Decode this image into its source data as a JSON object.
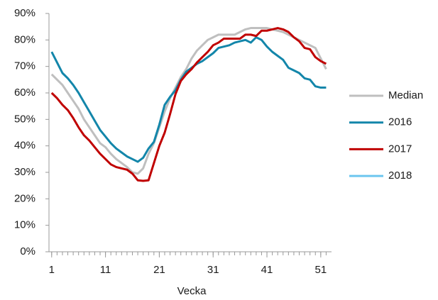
{
  "chart_data": {
    "type": "line",
    "x_label": "Vecka",
    "x": [
      1,
      2,
      3,
      4,
      5,
      6,
      7,
      8,
      9,
      10,
      11,
      12,
      13,
      14,
      15,
      16,
      17,
      18,
      19,
      20,
      21,
      22,
      23,
      24,
      25,
      26,
      27,
      28,
      29,
      30,
      31,
      32,
      33,
      34,
      35,
      36,
      37,
      38,
      39,
      40,
      41,
      42,
      43,
      44,
      45,
      46,
      47,
      48,
      49,
      50,
      51,
      52
    ],
    "xlim": [
      0.5,
      53
    ],
    "xticks": [
      1,
      11,
      21,
      31,
      41,
      51
    ],
    "ylim": [
      0,
      90
    ],
    "yticks": [
      {
        "value": 0,
        "label": "0%"
      },
      {
        "value": 10,
        "label": "10%"
      },
      {
        "value": 20,
        "label": "20%"
      },
      {
        "value": 30,
        "label": "30%"
      },
      {
        "value": 40,
        "label": "40%"
      },
      {
        "value": 50,
        "label": "50%"
      },
      {
        "value": 60,
        "label": "60%"
      },
      {
        "value": 70,
        "label": "70%"
      },
      {
        "value": 80,
        "label": "80%"
      },
      {
        "value": 90,
        "label": "90%"
      }
    ],
    "legend": "right",
    "series": [
      {
        "name": "Median",
        "color": "#bfbfbf",
        "values": [
          67,
          65,
          63,
          60,
          57,
          54,
          50,
          47,
          44,
          41,
          39.5,
          37,
          35,
          33.5,
          32,
          30,
          29.5,
          31.5,
          37,
          41,
          47,
          53,
          58,
          62,
          66,
          69,
          73,
          76,
          78,
          80,
          81,
          82,
          82,
          82,
          82,
          83,
          84,
          84.5,
          84.5,
          84.5,
          84.5,
          84,
          83.5,
          83,
          82,
          81,
          80,
          79,
          78,
          77,
          73,
          69
        ]
      },
      {
        "name": "2016",
        "color": "#1386aa",
        "values": [
          75.5,
          71.5,
          67.5,
          65.5,
          63,
          60,
          56.5,
          53,
          49.5,
          46,
          43.5,
          41,
          39,
          37.5,
          36,
          35,
          34,
          35.5,
          39,
          41.5,
          48,
          55.5,
          58.5,
          61,
          65,
          68,
          69.5,
          71,
          72,
          73.5,
          75,
          77,
          77.5,
          78,
          79,
          79.5,
          80,
          79,
          81,
          80,
          77.5,
          75.5,
          74,
          72.5,
          69.5,
          68.5,
          67.5,
          65.5,
          65,
          62.5,
          62,
          62
        ]
      },
      {
        "name": "2017",
        "color": "#c00000",
        "values": [
          60,
          58,
          55.5,
          53.5,
          50.5,
          47,
          44,
          42,
          39.5,
          37,
          35,
          33,
          32,
          31.5,
          31,
          29.5,
          27,
          26.8,
          27,
          33.5,
          40,
          45,
          52,
          59.5,
          64.5,
          67,
          69,
          71.5,
          73.5,
          75.5,
          78,
          79,
          80.5,
          80.5,
          80.5,
          80.5,
          82,
          82,
          81.5,
          83.5,
          83.5,
          84,
          84.5,
          84,
          83,
          81,
          79.5,
          77,
          76.5,
          73.5,
          72,
          71
        ]
      },
      {
        "name": "2018",
        "color": "#6cc6ef",
        "values": [
          null,
          null,
          null,
          null,
          null,
          null,
          null,
          null,
          null,
          null,
          null,
          null,
          null,
          null,
          null,
          null,
          null,
          null,
          null,
          null,
          null,
          null,
          null,
          null,
          null,
          null,
          null,
          null,
          null,
          null,
          null,
          null,
          null,
          null,
          null,
          null,
          null,
          null,
          null,
          null,
          null,
          null,
          null,
          null,
          null,
          null,
          null,
          null,
          null,
          null,
          null,
          null
        ]
      }
    ]
  }
}
